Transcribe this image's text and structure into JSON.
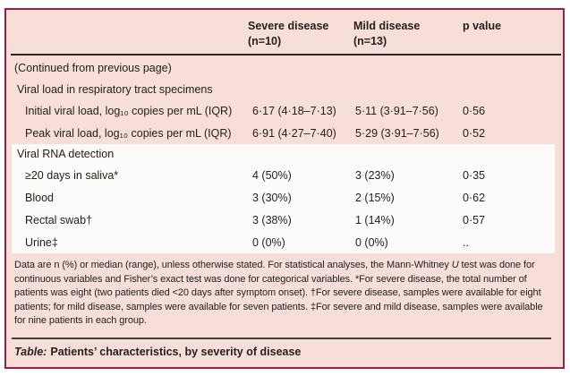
{
  "header": {
    "cols": [
      {
        "label": "Severe disease",
        "sub": "(n=10)"
      },
      {
        "label": "Mild disease",
        "sub": "(n=13)"
      },
      {
        "label": "p value",
        "sub": ""
      }
    ]
  },
  "continued_note": "(Continued from previous page)",
  "rows": [
    {
      "type": "section",
      "label": "Viral load in respiratory tract specimens"
    },
    {
      "type": "data",
      "label": "Initial viral load, log₁₀ copies per mL (IQR)",
      "severe": "6·17 (4·18–7·13)",
      "mild": "5·11 (3·91–7·56)",
      "p": "0·56"
    },
    {
      "type": "data",
      "label": "Peak viral load, log₁₀ copies per mL (IQR)",
      "severe": "6·91 (4·27–7·40)",
      "mild": "5·29 (3·91–7·56)",
      "p": "0·52"
    },
    {
      "type": "section",
      "label": "Viral RNA detection"
    },
    {
      "type": "data",
      "label": "≥20 days in saliva*",
      "severe": "4 (50%)",
      "mild": "3 (23%)",
      "p": "0·35"
    },
    {
      "type": "data",
      "label": "Blood",
      "severe": "3 (30%)",
      "mild": "2 (15%)",
      "p": "0·62"
    },
    {
      "type": "data",
      "label": "Rectal swab†",
      "severe": "3 (38%)",
      "mild": "1 (14%)",
      "p": "0·57"
    },
    {
      "type": "data",
      "label": "Urine‡",
      "severe": "0 (0%)",
      "mild": "0 (0%)",
      "p": ".."
    }
  ],
  "footnote": {
    "before_italic": "Data are n (%) or median (range), unless otherwise stated. For statistical analyses, the Mann-Whitney ",
    "italic": "U",
    "after_italic": " test was done for continuous variables and Fisher’s exact test was done for categorical variables. *For severe disease, the total number of patients was eight (two patients died <20 days after symptom onset). †For severe disease, samples were available for eight patients; for mild disease, samples were available for seven patients. ‡For severe and mild disease, samples were available for nine patients in each group."
  },
  "caption": {
    "prefix": "Table:",
    "text": "Patients’ characteristics, by severity of disease"
  },
  "colors": {
    "table_background": "#f8ded8",
    "band_background": "#fdfbfa",
    "border": "#9b2143",
    "rule": "#2a2523",
    "text": "#26201d"
  }
}
